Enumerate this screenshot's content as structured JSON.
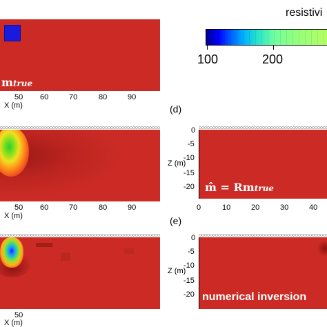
{
  "colorbar": {
    "title": "resistivi",
    "ticks": [
      "100",
      "200"
    ]
  },
  "panels": {
    "top_left": {
      "label_main": "m",
      "label_sub": "true",
      "x_axis_label": "X (m)",
      "x_ticks": [
        "50",
        "60",
        "70",
        "80",
        "90"
      ]
    },
    "mid_left": {
      "x_axis_label": "X (m)",
      "x_ticks": [
        "50",
        "60",
        "70",
        "80",
        "90"
      ]
    },
    "bottom_left": {
      "x_axis_label": "X (m)",
      "x_ticks": [
        "50"
      ]
    },
    "d": {
      "letter": "(d)",
      "z_axis_label": "Z (m)",
      "z_ticks": [
        "0",
        "-5",
        "-10",
        "-15",
        "-20"
      ],
      "x_ticks": [
        "0",
        "10",
        "20",
        "30",
        "40"
      ],
      "formula_hat": "m̂",
      "formula_eq": " = Rm",
      "formula_sub": "true"
    },
    "e": {
      "letter": "(e)",
      "z_axis_label": "Z (m)",
      "z_ticks": [
        "0",
        "-5",
        "-10",
        "-15",
        "-20"
      ],
      "label": "numerical inversion"
    }
  },
  "colors": {
    "background_red": "#cc2b25",
    "anomaly_blue": "#1a1adf"
  }
}
